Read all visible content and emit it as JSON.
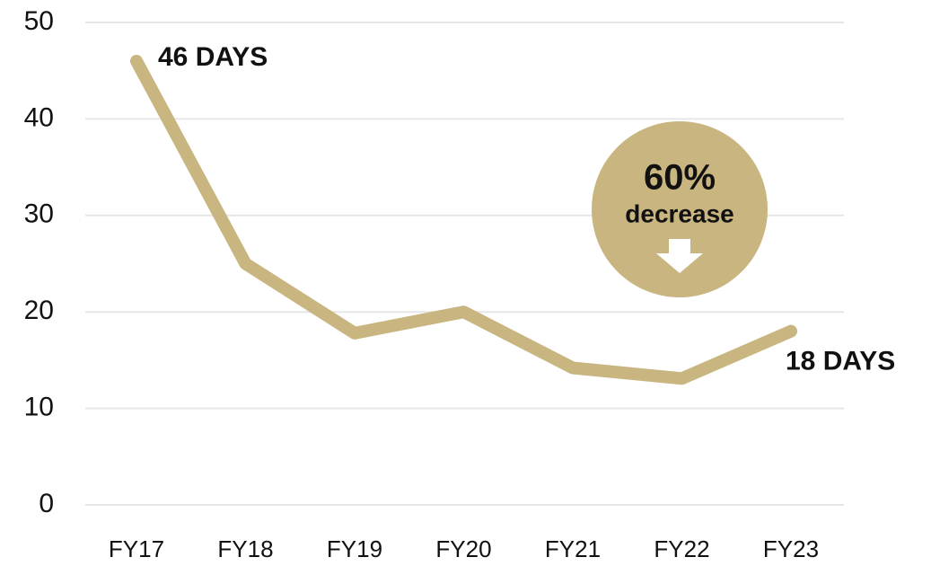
{
  "chart_data": {
    "type": "line",
    "categories": [
      "FY17",
      "FY18",
      "FY19",
      "FY20",
      "FY21",
      "FY22",
      "FY23"
    ],
    "series": [
      {
        "color": "#c9b57f",
        "values": [
          46,
          25,
          17.8,
          20,
          14.2,
          13.1,
          18
        ],
        "value_labels": [
          "46 DAYS",
          null,
          null,
          null,
          null,
          null,
          "18 DAYS"
        ]
      }
    ],
    "ylim": [
      0,
      50
    ],
    "yticks": [
      0,
      10,
      20,
      30,
      40,
      50
    ],
    "grid": true,
    "annotations": [
      "60%",
      "decrease"
    ],
    "annotation_color": "#c9b57f"
  }
}
